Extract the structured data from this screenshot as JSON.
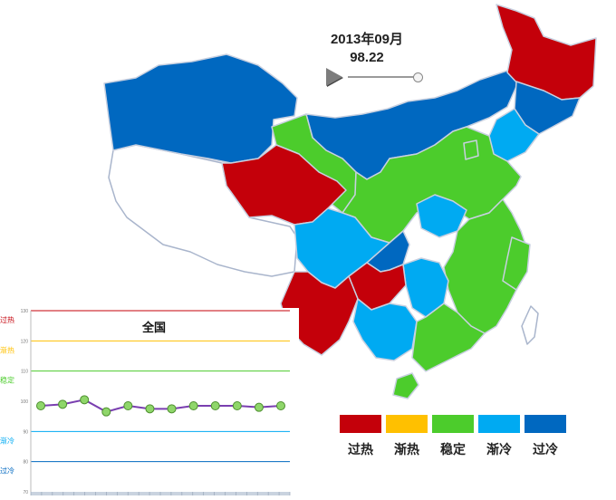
{
  "readout": {
    "date": "2013年09月",
    "value": "98.22"
  },
  "legend": {
    "items": [
      {
        "label": "过热",
        "color": "#c4000a"
      },
      {
        "label": "渐热",
        "color": "#ffc000"
      },
      {
        "label": "稳定",
        "color": "#4ccc2c"
      },
      {
        "label": "渐冷",
        "color": "#00aaf2"
      },
      {
        "label": "过冷",
        "color": "#0068c0"
      }
    ]
  },
  "chart_data": {
    "type": "line",
    "title": "全国",
    "ylim": [
      70,
      130
    ],
    "y_ticks": [
      70,
      80,
      90,
      100,
      110,
      120,
      130
    ],
    "thresholds": [
      {
        "value": 130,
        "label": "过热",
        "color": "#c4000a"
      },
      {
        "value": 120,
        "label": "渐热",
        "color": "#ffc000"
      },
      {
        "value": 110,
        "label": "稳定",
        "color": "#4ccc2c"
      },
      {
        "value": 90,
        "label": "渐冷",
        "color": "#00aaf2"
      },
      {
        "value": 80,
        "label": "过冷",
        "color": "#0068c0"
      }
    ],
    "series": [
      {
        "values": [
          98.5,
          99,
          100.5,
          96.5,
          98.5,
          97.5,
          97.5,
          98.5,
          98.5,
          98.5,
          98,
          98.5
        ]
      }
    ]
  }
}
